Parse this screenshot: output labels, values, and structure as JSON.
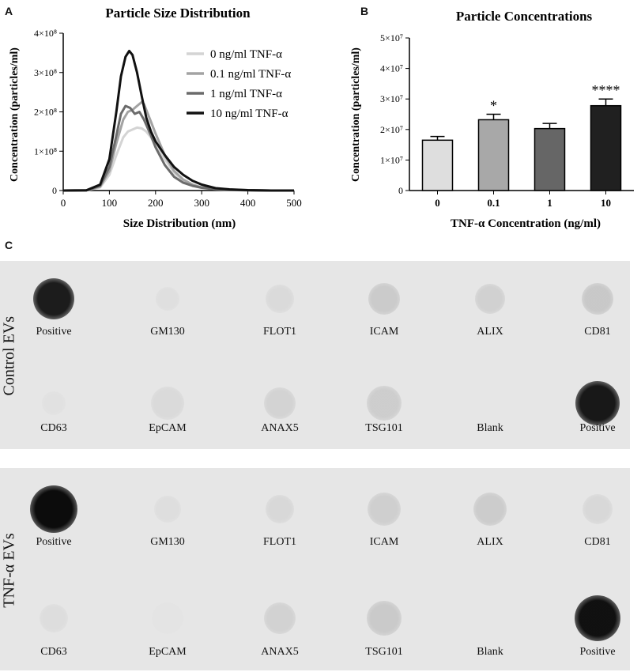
{
  "panels": {
    "a": "A",
    "b": "B",
    "c": "C"
  },
  "chart_data": [
    {
      "type": "line",
      "title": "Particle Size Distribution",
      "xlabel": "Size  Distribution (nm)",
      "ylabel": "Concentration (particles/ml)",
      "xlim": [
        0,
        500
      ],
      "ylim": [
        0,
        400000000
      ],
      "x_ticks": [
        "0",
        "100",
        "200",
        "300",
        "400",
        "500"
      ],
      "y_ticks": [
        "0",
        "1×10⁸",
        "2×10⁸",
        "3×10⁸",
        "4×10⁸"
      ],
      "legend_position": "top-right",
      "series": [
        {
          "name": "0 ng/ml TNF-α",
          "color": "#d4d4d4",
          "x": [
            0,
            50,
            80,
            100,
            115,
            130,
            140,
            150,
            160,
            170,
            180,
            190,
            200,
            220,
            240,
            260,
            280,
            300,
            330,
            360,
            400,
            450,
            500
          ],
          "y": [
            0,
            500000,
            8000000,
            40000000,
            90000000,
            135000000,
            150000000,
            155000000,
            160000000,
            158000000,
            150000000,
            135000000,
            115000000,
            80000000,
            45000000,
            25000000,
            15000000,
            8000000,
            4000000,
            2000000,
            1000000,
            0,
            0
          ]
        },
        {
          "name": "0.1 ng/ml TNF-α",
          "color": "#a3a3a3",
          "x": [
            0,
            50,
            80,
            100,
            115,
            130,
            140,
            150,
            160,
            170,
            175,
            180,
            190,
            200,
            220,
            240,
            260,
            280,
            300,
            330,
            360,
            400,
            450,
            500
          ],
          "y": [
            0,
            500000,
            10000000,
            50000000,
            120000000,
            180000000,
            200000000,
            205000000,
            215000000,
            225000000,
            220000000,
            205000000,
            175000000,
            145000000,
            90000000,
            50000000,
            28000000,
            15000000,
            8000000,
            4000000,
            2000000,
            1000000,
            0,
            0
          ]
        },
        {
          "name": "1 ng/ml TNF-α",
          "color": "#6b6b6b",
          "x": [
            0,
            50,
            80,
            100,
            115,
            125,
            135,
            145,
            155,
            165,
            175,
            190,
            200,
            220,
            240,
            260,
            280,
            300,
            330,
            360,
            400,
            450,
            500
          ],
          "y": [
            0,
            500000,
            12000000,
            60000000,
            140000000,
            195000000,
            215000000,
            210000000,
            195000000,
            200000000,
            180000000,
            140000000,
            110000000,
            65000000,
            35000000,
            20000000,
            12000000,
            7000000,
            3000000,
            1500000,
            500000,
            0,
            0
          ]
        },
        {
          "name": "10 ng/ml TNF-α",
          "color": "#111111",
          "x": [
            0,
            50,
            80,
            100,
            115,
            125,
            135,
            143,
            150,
            160,
            170,
            180,
            190,
            200,
            220,
            240,
            260,
            280,
            300,
            330,
            360,
            400,
            450,
            500
          ],
          "y": [
            0,
            500000,
            15000000,
            80000000,
            200000000,
            290000000,
            340000000,
            355000000,
            345000000,
            300000000,
            240000000,
            185000000,
            150000000,
            125000000,
            90000000,
            60000000,
            40000000,
            25000000,
            15000000,
            6000000,
            3000000,
            1000000,
            0,
            0
          ]
        }
      ]
    },
    {
      "type": "bar",
      "title": "Particle Concentrations",
      "xlabel": "TNF-α  Concentration (ng/ml)",
      "ylabel": "Concentration (particles/ml)",
      "categories": [
        "0",
        "0.1",
        "1",
        "10"
      ],
      "values": [
        16500000,
        23200000,
        20300000,
        27800000
      ],
      "errors": [
        1200000,
        1800000,
        1700000,
        2200000
      ],
      "significance": [
        "",
        "*",
        "",
        "****"
      ],
      "ylim": [
        0,
        50000000
      ],
      "y_ticks": [
        "0",
        "1×10⁷",
        "2×10⁷",
        "3×10⁷",
        "4×10⁷",
        "5×10⁷"
      ],
      "bar_fills": [
        "#dedede",
        "#a8a8a8",
        "#666666",
        "#202020"
      ]
    }
  ],
  "blots": [
    {
      "title": "Control EVs",
      "labels": [
        "Positive",
        "GM130",
        "FLOT1",
        "ICAM",
        "ALIX",
        "CD81",
        "CD63",
        "EpCAM",
        "ANAX5",
        "TSG101",
        "Blank",
        "Positive"
      ]
    },
    {
      "title": "TNF-α EVs",
      "labels": [
        "Positive",
        "GM130",
        "FLOT1",
        "ICAM",
        "ALIX",
        "CD81",
        "CD63",
        "EpCAM",
        "ANAX5",
        "TSG101",
        "Blank",
        "Positive"
      ]
    }
  ]
}
